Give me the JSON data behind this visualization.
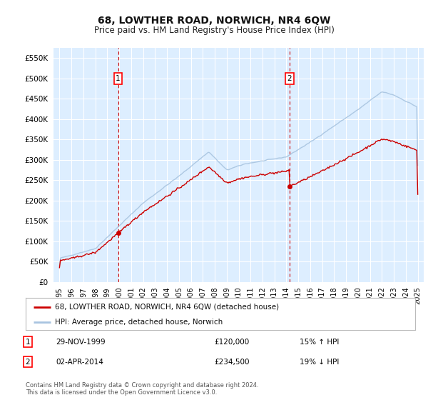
{
  "title": "68, LOWTHER ROAD, NORWICH, NR4 6QW",
  "subtitle": "Price paid vs. HM Land Registry's House Price Index (HPI)",
  "ylim": [
    0,
    575000
  ],
  "yticks": [
    0,
    50000,
    100000,
    150000,
    200000,
    250000,
    300000,
    350000,
    400000,
    450000,
    500000,
    550000
  ],
  "xlim_start": 1994.5,
  "xlim_end": 2025.5,
  "sale1_x": 1999.91,
  "sale1_y": 120000,
  "sale2_x": 2014.25,
  "sale2_y": 234500,
  "hpi_color": "#a8c4e0",
  "price_color": "#cc0000",
  "background_color": "#ddeeff",
  "grid_color": "#ffffff",
  "legend_label_price": "68, LOWTHER ROAD, NORWICH, NR4 6QW (detached house)",
  "legend_label_hpi": "HPI: Average price, detached house, Norwich",
  "footnote": "Contains HM Land Registry data © Crown copyright and database right 2024.\nThis data is licensed under the Open Government Licence v3.0.",
  "table_row1": [
    "1",
    "29-NOV-1999",
    "£120,000",
    "15% ↑ HPI"
  ],
  "table_row2": [
    "2",
    "02-APR-2014",
    "£234,500",
    "19% ↓ HPI"
  ]
}
